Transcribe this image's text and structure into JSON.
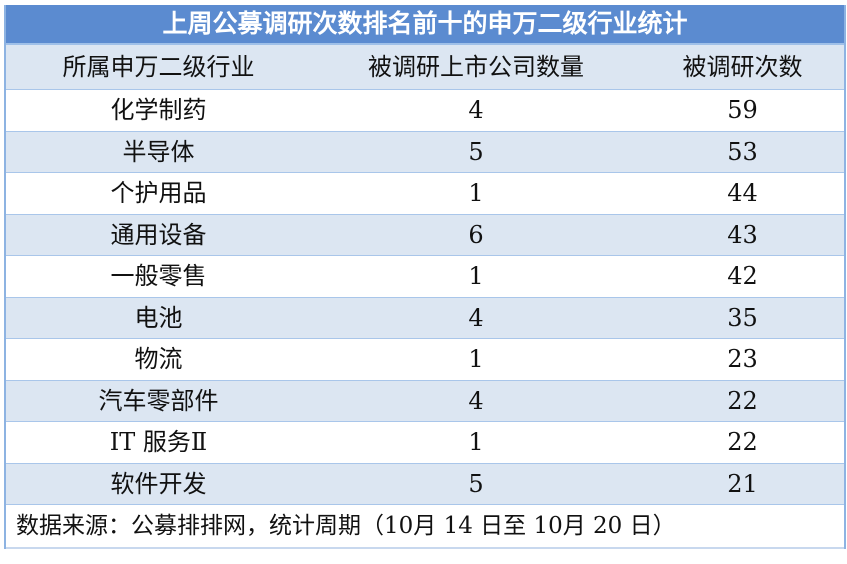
{
  "title": "上周公募调研次数排名前十的申万二级行业统计",
  "headers": [
    "所属申万二级行业",
    "被调研上市公司数量",
    "被调研次数"
  ],
  "rows": [
    {
      "industry": "化学制药",
      "companies": "4",
      "count": "59"
    },
    {
      "industry": "半导体",
      "companies": "5",
      "count": "53"
    },
    {
      "industry": "个护用品",
      "companies": "1",
      "count": "44"
    },
    {
      "industry": "通用设备",
      "companies": "6",
      "count": "43"
    },
    {
      "industry": "一般零售",
      "companies": "1",
      "count": "42"
    },
    {
      "industry": "电池",
      "companies": "4",
      "count": "35"
    },
    {
      "industry": "物流",
      "companies": "1",
      "count": "23"
    },
    {
      "industry": "汽车零部件",
      "companies": "4",
      "count": "22"
    },
    {
      "industry": "IT 服务Ⅱ",
      "companies": "1",
      "count": "22"
    },
    {
      "industry": "软件开发",
      "companies": "5",
      "count": "21"
    }
  ],
  "footer": "数据来源：公募排排网，统计周期（10月 14 日至 10月 20 日）",
  "colors": {
    "title_bg": "#5b8bd0",
    "alt_row_bg": "#dce6f2",
    "border": "#8db3e2"
  }
}
